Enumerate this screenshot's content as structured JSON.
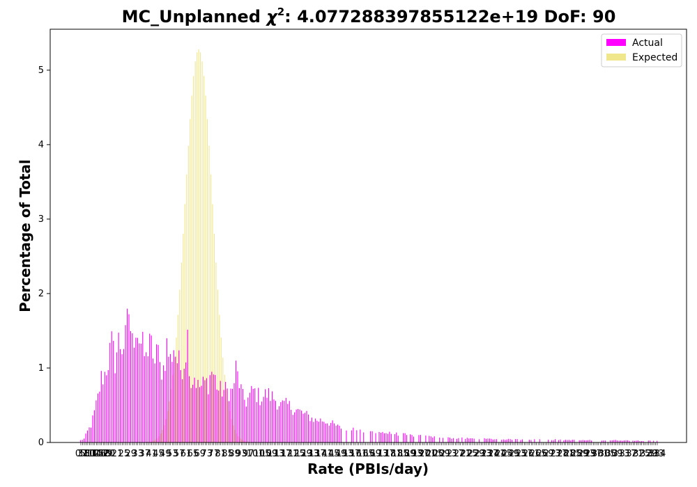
{
  "chart_data": {
    "type": "bar",
    "title_prefix": "MC_Unplanned ",
    "title_chi": "χ",
    "title_sup": "2",
    "title_suffix": ": 4.077288397855122e+19 DoF: 90",
    "xlabel": "Rate (PBIs/day)",
    "ylabel": "Percentage of Total",
    "ylim": [
      0,
      5.55
    ],
    "yticks": [
      0,
      1,
      2,
      3,
      4,
      5
    ],
    "legend_position": "top-right",
    "x_start": 0,
    "x_end": 334,
    "x_first_labels": [
      "0",
      "3",
      "5",
      "7",
      "8",
      "10",
      "11",
      "12",
      "14",
      "15",
      "16",
      "17",
      "18",
      "19",
      "20"
    ],
    "x_last_label": "334",
    "series": [
      {
        "name": "Actual",
        "color": "#ff00ff",
        "control_points": [
          [
            0,
            0.03
          ],
          [
            2,
            0.05
          ],
          [
            4,
            0.15
          ],
          [
            6,
            0.23
          ],
          [
            8,
            0.4
          ],
          [
            10,
            0.6
          ],
          [
            12,
            0.86
          ],
          [
            14,
            0.92
          ],
          [
            16,
            1.1
          ],
          [
            18,
            1.3
          ],
          [
            20,
            1.1
          ],
          [
            22,
            1.35
          ],
          [
            24,
            1.3
          ],
          [
            26,
            1.35
          ],
          [
            28,
            1.78
          ],
          [
            30,
            1.3
          ],
          [
            32,
            1.63
          ],
          [
            34,
            1.4
          ],
          [
            36,
            1.25
          ],
          [
            38,
            1.1
          ],
          [
            40,
            1.5
          ],
          [
            42,
            1.0
          ],
          [
            44,
            1.3
          ],
          [
            46,
            1.0
          ],
          [
            48,
            1.0
          ],
          [
            50,
            1.3
          ],
          [
            52,
            1.1
          ],
          [
            54,
            1.3
          ],
          [
            56,
            1.1
          ],
          [
            58,
            1.0
          ],
          [
            60,
            1.1
          ],
          [
            62,
            1.42
          ],
          [
            64,
            0.8
          ],
          [
            66,
            0.9
          ],
          [
            68,
            0.75
          ],
          [
            70,
            0.75
          ],
          [
            72,
            0.8
          ],
          [
            74,
            0.8
          ],
          [
            76,
            0.97
          ],
          [
            78,
            0.85
          ],
          [
            80,
            0.7
          ],
          [
            84,
            0.7
          ],
          [
            88,
            0.68
          ],
          [
            90,
            0.98
          ],
          [
            92,
            0.8
          ],
          [
            94,
            0.6
          ],
          [
            96,
            0.55
          ],
          [
            100,
            0.7
          ],
          [
            104,
            0.6
          ],
          [
            108,
            0.65
          ],
          [
            112,
            0.6
          ],
          [
            116,
            0.5
          ],
          [
            120,
            0.5
          ],
          [
            124,
            0.45
          ],
          [
            128,
            0.4
          ],
          [
            132,
            0.35
          ],
          [
            136,
            0.3
          ],
          [
            140,
            0.3
          ],
          [
            146,
            0.25
          ],
          [
            150,
            0.2
          ],
          [
            156,
            0.2
          ],
          [
            162,
            0.15
          ],
          [
            170,
            0.15
          ],
          [
            180,
            0.12
          ],
          [
            190,
            0.1
          ],
          [
            200,
            0.08
          ],
          [
            215,
            0.06
          ],
          [
            230,
            0.05
          ],
          [
            250,
            0.04
          ],
          [
            270,
            0.04
          ],
          [
            290,
            0.03
          ],
          [
            310,
            0.03
          ],
          [
            334,
            0.02
          ]
        ]
      },
      {
        "name": "Expected",
        "color": "#f0e68c",
        "gaussian": {
          "mean": 68,
          "sd": 8,
          "peak": 5.28
        }
      }
    ]
  }
}
